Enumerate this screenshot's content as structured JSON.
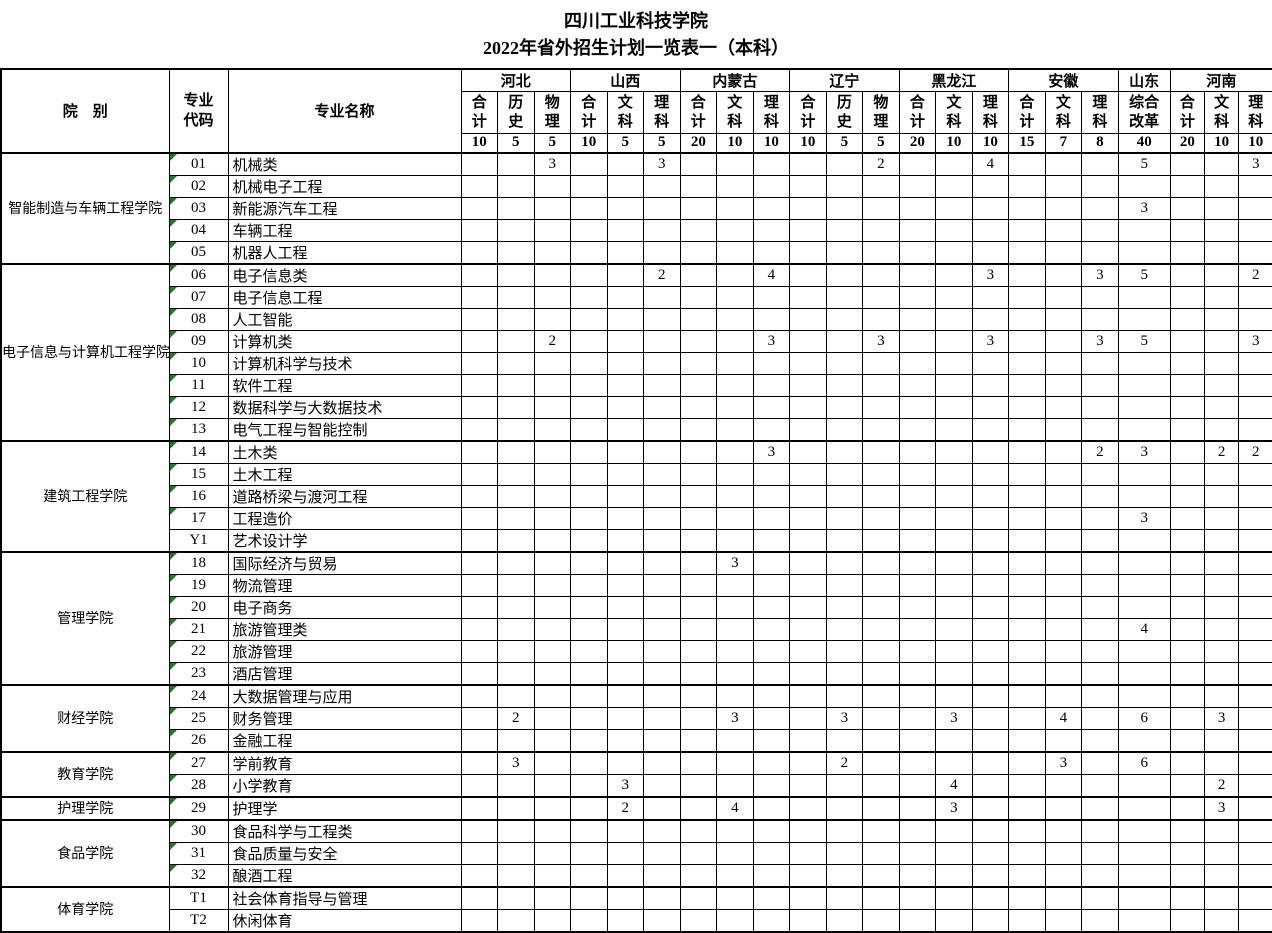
{
  "title": {
    "line1": "四川工业科技学院",
    "line2": "2022年省外招生计划一览表一（本科）"
  },
  "colors": {
    "marker_green": "#1d7d1d",
    "border": "#000000",
    "text": "#000000",
    "background": "#ffffff"
  },
  "table": {
    "corner": {
      "college": "院　别",
      "code": "专业代码",
      "major": "专业名称"
    },
    "groups": [
      {
        "name": "河北",
        "cols": [
          "合计",
          "历史",
          "物理"
        ],
        "quotas": [
          "10",
          "5",
          "5"
        ]
      },
      {
        "name": "山西",
        "cols": [
          "合计",
          "文科",
          "理科"
        ],
        "quotas": [
          "10",
          "5",
          "5"
        ]
      },
      {
        "name": "内蒙古",
        "cols": [
          "合计",
          "文科",
          "理科"
        ],
        "quotas": [
          "20",
          "10",
          "10"
        ]
      },
      {
        "name": "辽宁",
        "cols": [
          "合计",
          "历史",
          "物理"
        ],
        "quotas": [
          "10",
          "5",
          "5"
        ]
      },
      {
        "name": "黑龙江",
        "cols": [
          "合计",
          "文科",
          "理科"
        ],
        "quotas": [
          "20",
          "10",
          "10"
        ]
      },
      {
        "name": "安徽",
        "cols": [
          "合计",
          "文科",
          "理科"
        ],
        "quotas": [
          "15",
          "7",
          "8"
        ]
      },
      {
        "name": "山东",
        "cols": [
          "综合改革"
        ],
        "quotas": [
          "40"
        ]
      },
      {
        "name": "河南",
        "cols": [
          "合计",
          "文科",
          "理科"
        ],
        "quotas": [
          "20",
          "10",
          "10"
        ]
      }
    ],
    "column_keys": [
      "河北合计",
      "河北历史",
      "河北物理",
      "山西合计",
      "山西文科",
      "山西理科",
      "内蒙古合计",
      "内蒙古文科",
      "内蒙古理科",
      "辽宁合计",
      "辽宁历史",
      "辽宁物理",
      "黑龙江合计",
      "黑龙江文科",
      "黑龙江理科",
      "安徽合计",
      "安徽文科",
      "安徽理科",
      "山东综合改革",
      "河南合计",
      "河南文科",
      "河南理科"
    ],
    "colleges": [
      {
        "name": "智能制造与车辆工程学院",
        "majors": [
          {
            "code": "01",
            "name": "机械类",
            "marker": true,
            "values": {
              "3": "3",
              "6": "3",
              "12": "2",
              "15": "4",
              "19": "5",
              "22": "3"
            }
          },
          {
            "code": "02",
            "name": "机械电子工程",
            "marker": true,
            "values": {}
          },
          {
            "code": "03",
            "name": "新能源汽车工程",
            "marker": true,
            "values": {
              "19": "3"
            }
          },
          {
            "code": "04",
            "name": "车辆工程",
            "marker": true,
            "values": {}
          },
          {
            "code": "05",
            "name": "机器人工程",
            "marker": true,
            "values": {}
          }
        ]
      },
      {
        "name": "电子信息与计算机工程学院",
        "majors": [
          {
            "code": "06",
            "name": "电子信息类",
            "marker": true,
            "values": {
              "6": "2",
              "9": "4",
              "15": "3",
              "18": "3",
              "19": "5",
              "22": "2"
            }
          },
          {
            "code": "07",
            "name": "电子信息工程",
            "marker": true,
            "values": {}
          },
          {
            "code": "08",
            "name": "人工智能",
            "marker": true,
            "values": {}
          },
          {
            "code": "09",
            "name": "计算机类",
            "marker": true,
            "values": {
              "3": "2",
              "9": "3",
              "12": "3",
              "15": "3",
              "18": "3",
              "19": "5",
              "22": "3"
            }
          },
          {
            "code": "10",
            "name": "计算机科学与技术",
            "marker": true,
            "values": {}
          },
          {
            "code": "11",
            "name": "软件工程",
            "marker": true,
            "values": {}
          },
          {
            "code": "12",
            "name": "数据科学与大数据技术",
            "marker": true,
            "values": {}
          },
          {
            "code": "13",
            "name": "电气工程与智能控制",
            "marker": true,
            "values": {}
          }
        ]
      },
      {
        "name": "建筑工程学院",
        "majors": [
          {
            "code": "14",
            "name": "土木类",
            "marker": true,
            "values": {
              "9": "3",
              "18": "2",
              "19": "3",
              "21": "2",
              "22": "2"
            }
          },
          {
            "code": "15",
            "name": "土木工程",
            "marker": true,
            "values": {}
          },
          {
            "code": "16",
            "name": "道路桥梁与渡河工程",
            "marker": true,
            "values": {}
          },
          {
            "code": "17",
            "name": "工程造价",
            "marker": true,
            "values": {
              "19": "3"
            }
          },
          {
            "code": "Y1",
            "name": "艺术设计学",
            "marker": false,
            "values": {}
          }
        ]
      },
      {
        "name": "管理学院",
        "majors": [
          {
            "code": "18",
            "name": "国际经济与贸易",
            "marker": true,
            "values": {
              "8": "3"
            }
          },
          {
            "code": "19",
            "name": "物流管理",
            "marker": true,
            "values": {}
          },
          {
            "code": "20",
            "name": "电子商务",
            "marker": true,
            "values": {}
          },
          {
            "code": "21",
            "name": "旅游管理类",
            "marker": true,
            "values": {
              "19": "4"
            }
          },
          {
            "code": "22",
            "name": "旅游管理",
            "marker": true,
            "values": {}
          },
          {
            "code": "23",
            "name": "酒店管理",
            "marker": true,
            "values": {}
          }
        ]
      },
      {
        "name": "财经学院",
        "majors": [
          {
            "code": "24",
            "name": "大数据管理与应用",
            "marker": true,
            "values": {}
          },
          {
            "code": "25",
            "name": "财务管理",
            "marker": true,
            "values": {
              "2": "2",
              "8": "3",
              "11": "3",
              "14": "3",
              "17": "4",
              "19": "6",
              "21": "3"
            }
          },
          {
            "code": "26",
            "name": "金融工程",
            "marker": true,
            "values": {}
          }
        ]
      },
      {
        "name": "教育学院",
        "majors": [
          {
            "code": "27",
            "name": "学前教育",
            "marker": true,
            "values": {
              "2": "3",
              "11": "2",
              "17": "3",
              "19": "6"
            }
          },
          {
            "code": "28",
            "name": "小学教育",
            "marker": true,
            "values": {
              "5": "3",
              "14": "4",
              "21": "2"
            }
          }
        ]
      },
      {
        "name": "护理学院",
        "majors": [
          {
            "code": "29",
            "name": "护理学",
            "marker": true,
            "values": {
              "5": "2",
              "8": "4",
              "14": "3",
              "21": "3"
            }
          }
        ]
      },
      {
        "name": "食品学院",
        "majors": [
          {
            "code": "30",
            "name": "食品科学与工程类",
            "marker": true,
            "values": {}
          },
          {
            "code": "31",
            "name": "食品质量与安全",
            "marker": true,
            "values": {}
          },
          {
            "code": "32",
            "name": "酿酒工程",
            "marker": true,
            "values": {}
          }
        ]
      },
      {
        "name": "体育学院",
        "majors": [
          {
            "code": "T1",
            "name": "社会体育指导与管理",
            "marker": false,
            "values": {}
          },
          {
            "code": "T2",
            "name": "休闲体育",
            "marker": false,
            "values": {}
          }
        ]
      }
    ]
  }
}
